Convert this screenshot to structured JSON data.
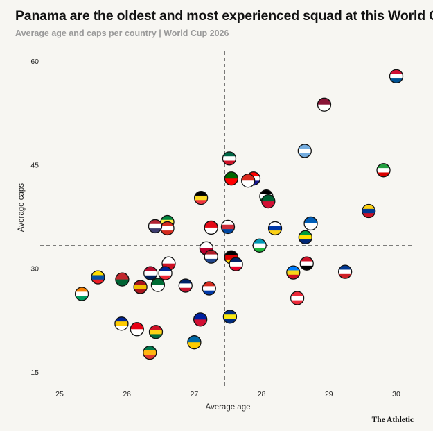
{
  "title": "Panama are the oldest and most experienced squad at this World Cup",
  "subtitle": "Average age and caps per country | World Cup 2026",
  "brand": "The Athletic",
  "chart_data": {
    "type": "scatter",
    "xlabel": "Average age",
    "ylabel": "Average caps",
    "xlim": [
      24.75,
      30.25
    ],
    "ylim": [
      13,
      62
    ],
    "xticks": [
      25,
      26,
      27,
      28,
      29,
      30
    ],
    "yticks": [
      15,
      30,
      45,
      60
    ],
    "reference_x": 27.45,
    "reference_y": 33.3,
    "grid": false,
    "points": [
      {
        "icon": "panama-flag-icon",
        "x": 30.0,
        "y": 57.8,
        "colors": [
          "#d21034",
          "#ffffff",
          "#005293"
        ]
      },
      {
        "icon": "qatar-flag-icon",
        "x": 28.93,
        "y": 53.7,
        "colors": [
          "#8a1538",
          "#ffffff"
        ]
      },
      {
        "icon": "argentina-flag-icon",
        "x": 28.64,
        "y": 47.0,
        "colors": [
          "#74acdf",
          "#ffffff",
          "#74acdf"
        ]
      },
      {
        "icon": "iran-flag-icon",
        "x": 29.81,
        "y": 44.2,
        "colors": [
          "#239f40",
          "#ffffff",
          "#da0000"
        ]
      },
      {
        "icon": "mexico-flag-icon",
        "x": 27.52,
        "y": 45.9,
        "colors": [
          "#006847",
          "#ffffff",
          "#ce1126"
        ]
      },
      {
        "icon": "portugal-flag-icon",
        "x": 27.55,
        "y": 43.0,
        "colors": [
          "#006600",
          "#ff0000"
        ]
      },
      {
        "icon": "croatia-flag-icon",
        "x": 27.88,
        "y": 43.0,
        "colors": [
          "#ff0000",
          "#ffffff",
          "#171796"
        ]
      },
      {
        "icon": "switzerland-flag-icon",
        "x": 27.8,
        "y": 42.7,
        "colors": [
          "#da291c",
          "#ffffff"
        ]
      },
      {
        "icon": "jordan-flag-icon",
        "x": 28.07,
        "y": 40.4,
        "colors": [
          "#000000",
          "#ffffff",
          "#007a3d"
        ]
      },
      {
        "icon": "algeria-flag-icon",
        "x": 28.1,
        "y": 39.7,
        "colors": [
          "#006233",
          "#d21034"
        ]
      },
      {
        "icon": "belgium-flag-icon",
        "x": 27.1,
        "y": 40.2,
        "colors": [
          "#000000",
          "#fdda24",
          "#ef3340"
        ]
      },
      {
        "icon": "colombia-flag-icon",
        "x": 29.59,
        "y": 38.3,
        "colors": [
          "#fcd116",
          "#003893",
          "#ce1126"
        ]
      },
      {
        "icon": "senegal-flag-icon",
        "x": 26.6,
        "y": 36.7,
        "colors": [
          "#00853f",
          "#fdef42",
          "#e31b23"
        ]
      },
      {
        "icon": "canada-flag-icon",
        "x": 26.6,
        "y": 35.8,
        "colors": [
          "#d52b1e",
          "#ffffff",
          "#d52b1e"
        ]
      },
      {
        "icon": "usa-flag-icon",
        "x": 26.42,
        "y": 36.1,
        "colors": [
          "#b22234",
          "#ffffff",
          "#3c3b6e"
        ]
      },
      {
        "icon": "turkey-flag-icon",
        "x": 27.25,
        "y": 35.9,
        "colors": [
          "#e30a17",
          "#ffffff"
        ]
      },
      {
        "icon": "south-korea-flag-icon",
        "x": 27.5,
        "y": 36.0,
        "colors": [
          "#ffffff",
          "#cd2e3a",
          "#0047a0"
        ]
      },
      {
        "icon": "uruguay-flag-icon",
        "x": 28.2,
        "y": 35.8,
        "colors": [
          "#ffffff",
          "#0038a8",
          "#fcd116"
        ]
      },
      {
        "icon": "scotland-flag-icon",
        "x": 28.73,
        "y": 36.5,
        "colors": [
          "#005eb8",
          "#ffffff"
        ]
      },
      {
        "icon": "brazil-flag-icon",
        "x": 28.65,
        "y": 34.5,
        "colors": [
          "#009c3b",
          "#ffdf00",
          "#002776"
        ]
      },
      {
        "icon": "uzbekistan-flag-icon",
        "x": 27.97,
        "y": 33.3,
        "colors": [
          "#0099b5",
          "#ffffff",
          "#1eb53a"
        ]
      },
      {
        "icon": "japan-flag-icon",
        "x": 27.18,
        "y": 32.9,
        "colors": [
          "#ffffff",
          "#bc002d"
        ]
      },
      {
        "icon": "netherlands-flag-icon",
        "x": 27.25,
        "y": 31.7,
        "colors": [
          "#ae1c28",
          "#ffffff",
          "#21468b"
        ]
      },
      {
        "icon": "germany-flag-icon",
        "x": 27.55,
        "y": 31.6,
        "colors": [
          "#000000",
          "#dd0000",
          "#ffce00"
        ]
      },
      {
        "icon": "australia-flag-icon",
        "x": 27.62,
        "y": 30.6,
        "colors": [
          "#012169",
          "#ffffff",
          "#e4002b"
        ]
      },
      {
        "icon": "egypt-flag-icon",
        "x": 28.67,
        "y": 30.7,
        "colors": [
          "#ce1126",
          "#ffffff",
          "#000000"
        ]
      },
      {
        "icon": "dr-congo-flag-icon",
        "x": 28.47,
        "y": 29.4,
        "colors": [
          "#007fff",
          "#f7d618",
          "#ce1021"
        ]
      },
      {
        "icon": "cape-verde-flag-icon",
        "x": 29.24,
        "y": 29.5,
        "colors": [
          "#003893",
          "#ffffff",
          "#cf2027"
        ]
      },
      {
        "icon": "england-flag-icon",
        "x": 26.62,
        "y": 30.7,
        "colors": [
          "#ffffff",
          "#ce1124"
        ]
      },
      {
        "icon": "norway-flag-icon",
        "x": 26.35,
        "y": 29.3,
        "colors": [
          "#ba0c2f",
          "#ffffff",
          "#00205b"
        ]
      },
      {
        "icon": "france-flag-icon",
        "x": 26.57,
        "y": 29.3,
        "colors": [
          "#002395",
          "#ffffff",
          "#ed2939"
        ]
      },
      {
        "icon": "ecuador-flag-icon",
        "x": 25.57,
        "y": 28.7,
        "colors": [
          "#ffdd00",
          "#034ea2",
          "#ed1c24"
        ]
      },
      {
        "icon": "morocco-flag-icon",
        "x": 25.93,
        "y": 28.4,
        "colors": [
          "#c1272d",
          "#006233"
        ]
      },
      {
        "icon": "spain-flag-icon",
        "x": 26.2,
        "y": 27.3,
        "colors": [
          "#aa151b",
          "#f1bf00",
          "#aa151b"
        ]
      },
      {
        "icon": "saudi-arabia-flag-icon",
        "x": 26.46,
        "y": 27.6,
        "colors": [
          "#006c35",
          "#ffffff"
        ]
      },
      {
        "icon": "new-zealand-flag-icon",
        "x": 26.87,
        "y": 27.5,
        "colors": [
          "#012169",
          "#ffffff",
          "#c8102e"
        ]
      },
      {
        "icon": "paraguay-flag-icon",
        "x": 27.22,
        "y": 27.1,
        "colors": [
          "#d52b1e",
          "#ffffff",
          "#0038a8"
        ]
      },
      {
        "icon": "ivory-coast-flag-icon",
        "x": 25.33,
        "y": 26.3,
        "colors": [
          "#f77f00",
          "#ffffff",
          "#009e60"
        ]
      },
      {
        "icon": "austria-flag-icon",
        "x": 28.53,
        "y": 25.7,
        "colors": [
          "#ed2939",
          "#ffffff",
          "#ed2939"
        ]
      },
      {
        "icon": "curacao-flag-icon",
        "x": 27.53,
        "y": 23.0,
        "colors": [
          "#002b7f",
          "#f9e814",
          "#002b7f"
        ]
      },
      {
        "icon": "haiti-flag-icon",
        "x": 27.09,
        "y": 22.6,
        "colors": [
          "#00209f",
          "#d21034"
        ]
      },
      {
        "icon": "bosnia-flag-icon",
        "x": 25.92,
        "y": 22.0,
        "colors": [
          "#002395",
          "#fecb00",
          "#ffffff"
        ]
      },
      {
        "icon": "tunisia-flag-icon",
        "x": 26.15,
        "y": 21.2,
        "colors": [
          "#e70013",
          "#ffffff"
        ]
      },
      {
        "icon": "ghana-flag-icon",
        "x": 26.43,
        "y": 20.8,
        "colors": [
          "#ce1126",
          "#fcd116",
          "#006b3f"
        ]
      },
      {
        "icon": "sweden-flag-icon",
        "x": 27.0,
        "y": 19.3,
        "colors": [
          "#006aa7",
          "#fecc00"
        ]
      },
      {
        "icon": "south-africa-flag-icon",
        "x": 26.34,
        "y": 17.8,
        "colors": [
          "#007a4d",
          "#ffb612",
          "#de3831"
        ]
      }
    ]
  }
}
